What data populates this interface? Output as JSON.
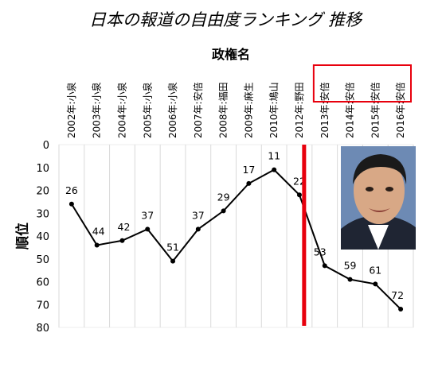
{
  "chart_data": {
    "type": "line",
    "title": "日本の報道の自由度ランキング 推移",
    "xlabel": "政権名",
    "ylabel": "順位",
    "y_axis_inverted": true,
    "ylim": [
      0,
      80
    ],
    "yticks": [
      0,
      10,
      20,
      30,
      40,
      50,
      60,
      70,
      80
    ],
    "grid": "vertical",
    "categories": [
      "2002年:小泉",
      "2003年:小泉",
      "2004年:小泉",
      "2005年:小泉",
      "2006年:小泉",
      "2007年:安倍",
      "2008年:福田",
      "2009年:麻生",
      "2010年:鳩山",
      "2012年:野田",
      "2013年:安倍",
      "2014年:安倍",
      "2015年:安倍",
      "2016年:安倍"
    ],
    "series": [
      {
        "values": [
          26,
          44,
          42,
          37,
          51,
          37,
          29,
          17,
          11,
          22,
          53,
          59,
          61,
          72
        ]
      }
    ],
    "data_labels": [
      "26",
      "44",
      "42",
      "37",
      "51",
      "37",
      "29",
      "17",
      "11",
      "22",
      "53",
      "59",
      "61",
      "72"
    ],
    "annotations": {
      "highlight_box_categories": [
        "2013年:安倍",
        "2014年:安倍",
        "2015年:安倍",
        "2016年:安倍"
      ],
      "divider_between": [
        "2012年:野田",
        "2013年:安倍"
      ],
      "divider_color": "#e8000d",
      "photo": "politician-portrait"
    },
    "colors": {
      "line": "#000000",
      "highlight": "#e8000d",
      "grid": "#d9d9d9"
    }
  }
}
